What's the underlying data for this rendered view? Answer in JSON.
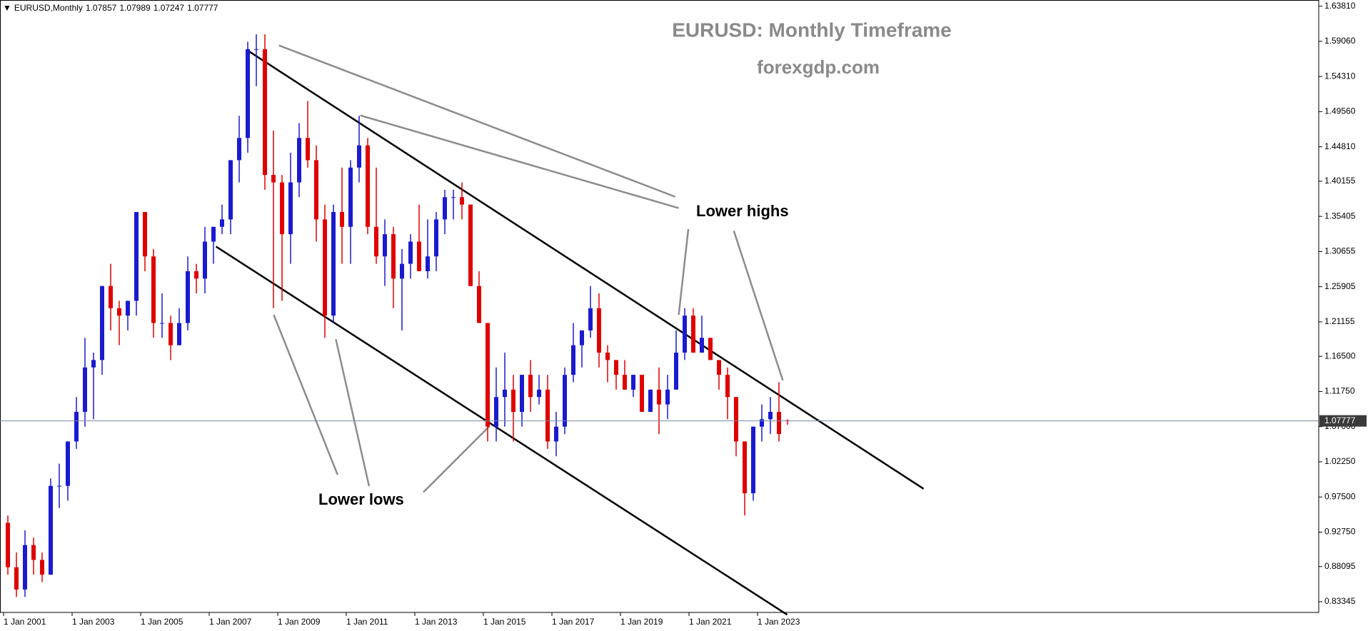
{
  "header": {
    "symbol": "EURUSD,Monthly",
    "ohlc": [
      1.07857,
      1.07989,
      1.07247,
      1.07777
    ]
  },
  "chart_data": {
    "type": "candlestick",
    "title": "EURUSD: Monthly Timeframe",
    "subtitle": "forexgdp.com",
    "annotations": [
      "Lower highs",
      "Lower lows"
    ],
    "up_color": "#1a1ad0",
    "down_color": "#e00000",
    "current_price": 1.07777,
    "x": [
      2001,
      2001.25,
      2001.5,
      2001.75,
      2002,
      2002.25,
      2002.5,
      2002.75,
      2003,
      2003.25,
      2003.5,
      2003.75,
      2004,
      2004.25,
      2004.5,
      2004.75,
      2005,
      2005.25,
      2005.5,
      2005.75,
      2006,
      2006.25,
      2006.5,
      2006.75,
      2007,
      2007.25,
      2007.5,
      2007.75,
      2008,
      2008.25,
      2008.5,
      2008.75,
      2009,
      2009.25,
      2009.5,
      2009.75,
      2010,
      2010.25,
      2010.5,
      2010.75,
      2011,
      2011.25,
      2011.5,
      2011.75,
      2012,
      2012.25,
      2012.5,
      2012.75,
      2013,
      2013.25,
      2013.5,
      2013.75,
      2014,
      2014.25,
      2014.5,
      2014.75,
      2015,
      2015.25,
      2015.5,
      2015.75,
      2016,
      2016.25,
      2016.5,
      2016.75,
      2017,
      2017.25,
      2017.5,
      2017.75,
      2018,
      2018.25,
      2018.5,
      2018.75,
      2019,
      2019.25,
      2019.5,
      2019.75,
      2020,
      2020.25,
      2020.5,
      2020.75,
      2021,
      2021.25,
      2021.5,
      2021.75,
      2022,
      2022.25,
      2022.5,
      2022.75,
      2023,
      2023.25,
      2023.5,
      2023.75
    ],
    "open": [
      0.94,
      0.88,
      0.85,
      0.91,
      0.89,
      0.87,
      0.99,
      0.99,
      1.05,
      1.09,
      1.15,
      1.16,
      1.26,
      1.23,
      1.22,
      1.24,
      1.36,
      1.3,
      1.21,
      1.21,
      1.18,
      1.21,
      1.28,
      1.27,
      1.32,
      1.34,
      1.35,
      1.43,
      1.46,
      1.58,
      1.58,
      1.41,
      1.4,
      1.33,
      1.4,
      1.46,
      1.43,
      1.35,
      1.22,
      1.36,
      1.34,
      1.42,
      1.45,
      1.34,
      1.3,
      1.33,
      1.27,
      1.29,
      1.32,
      1.28,
      1.3,
      1.35,
      1.38,
      1.38,
      1.37,
      1.26,
      1.21,
      1.07,
      1.11,
      1.12,
      1.09,
      1.14,
      1.11,
      1.12,
      1.05,
      1.07,
      1.14,
      1.18,
      1.2,
      1.23,
      1.17,
      1.16,
      1.14,
      1.12,
      1.14,
      1.09,
      1.12,
      1.1,
      1.12,
      1.17,
      1.22,
      1.17,
      1.19,
      1.16,
      1.14,
      1.11,
      1.05,
      0.98,
      1.07,
      1.08,
      1.09,
      1.07857
    ],
    "high": [
      0.95,
      0.9,
      0.93,
      0.92,
      0.9,
      1.0,
      1.02,
      1.05,
      1.11,
      1.19,
      1.17,
      1.26,
      1.29,
      1.24,
      1.24,
      1.36,
      1.36,
      1.31,
      1.25,
      1.22,
      1.23,
      1.3,
      1.29,
      1.34,
      1.34,
      1.37,
      1.43,
      1.49,
      1.59,
      1.6,
      1.6,
      1.47,
      1.41,
      1.44,
      1.48,
      1.51,
      1.45,
      1.37,
      1.37,
      1.42,
      1.43,
      1.49,
      1.46,
      1.42,
      1.35,
      1.34,
      1.31,
      1.33,
      1.37,
      1.35,
      1.36,
      1.39,
      1.39,
      1.4,
      1.37,
      1.28,
      1.21,
      1.15,
      1.17,
      1.14,
      1.14,
      1.16,
      1.14,
      1.14,
      1.09,
      1.15,
      1.21,
      1.2,
      1.26,
      1.25,
      1.18,
      1.16,
      1.16,
      1.14,
      1.14,
      1.12,
      1.15,
      1.14,
      1.2,
      1.23,
      1.23,
      1.22,
      1.19,
      1.16,
      1.15,
      1.11,
      1.05,
      1.07,
      1.1,
      1.11,
      1.13,
      1.07989
    ],
    "low": [
      0.87,
      0.84,
      0.84,
      0.87,
      0.86,
      0.87,
      0.96,
      0.97,
      1.04,
      1.07,
      1.08,
      1.14,
      1.2,
      1.18,
      1.2,
      1.22,
      1.28,
      1.19,
      1.19,
      1.16,
      1.18,
      1.2,
      1.25,
      1.25,
      1.29,
      1.33,
      1.33,
      1.4,
      1.44,
      1.53,
      1.39,
      1.23,
      1.24,
      1.29,
      1.38,
      1.42,
      1.32,
      1.19,
      1.21,
      1.29,
      1.29,
      1.4,
      1.33,
      1.29,
      1.26,
      1.23,
      1.2,
      1.27,
      1.28,
      1.27,
      1.28,
      1.33,
      1.35,
      1.35,
      1.26,
      1.21,
      1.05,
      1.05,
      1.07,
      1.05,
      1.07,
      1.09,
      1.1,
      1.04,
      1.03,
      1.06,
      1.13,
      1.15,
      1.19,
      1.15,
      1.13,
      1.12,
      1.12,
      1.11,
      1.09,
      1.09,
      1.06,
      1.08,
      1.12,
      1.16,
      1.17,
      1.17,
      1.16,
      1.12,
      1.08,
      1.03,
      0.95,
      0.97,
      1.05,
      1.06,
      1.05,
      1.07247
    ],
    "close": [
      0.88,
      0.85,
      0.91,
      0.89,
      0.87,
      0.99,
      0.99,
      1.05,
      1.09,
      1.15,
      1.16,
      1.26,
      1.23,
      1.22,
      1.24,
      1.36,
      1.3,
      1.21,
      1.21,
      1.18,
      1.21,
      1.28,
      1.27,
      1.32,
      1.34,
      1.35,
      1.43,
      1.46,
      1.58,
      1.58,
      1.41,
      1.4,
      1.33,
      1.4,
      1.46,
      1.43,
      1.35,
      1.22,
      1.36,
      1.34,
      1.42,
      1.45,
      1.34,
      1.3,
      1.33,
      1.27,
      1.29,
      1.32,
      1.28,
      1.3,
      1.35,
      1.38,
      1.38,
      1.37,
      1.26,
      1.21,
      1.07,
      1.11,
      1.12,
      1.09,
      1.14,
      1.11,
      1.12,
      1.05,
      1.07,
      1.14,
      1.18,
      1.2,
      1.23,
      1.17,
      1.16,
      1.14,
      1.12,
      1.14,
      1.09,
      1.12,
      1.1,
      1.12,
      1.17,
      1.22,
      1.17,
      1.19,
      1.16,
      1.14,
      1.11,
      1.05,
      0.98,
      1.07,
      1.08,
      1.09,
      1.06,
      1.07777
    ],
    "xlim": [
      2000.896,
      2039.375
    ],
    "ylim": [
      0.819,
      1.6464
    ],
    "xticks": [
      {
        "value": 2001,
        "label": "1 Jan 2001"
      },
      {
        "value": 2003,
        "label": "1 Jan 2003"
      },
      {
        "value": 2005,
        "label": "1 Jan 2005"
      },
      {
        "value": 2007,
        "label": "1 Jan 2007"
      },
      {
        "value": 2009,
        "label": "1 Jan 2009"
      },
      {
        "value": 2011,
        "label": "1 Jan 2011"
      },
      {
        "value": 2013,
        "label": "1 Jan 2013"
      },
      {
        "value": 2015,
        "label": "1 Jan 2015"
      },
      {
        "value": 2017,
        "label": "1 Jan 2017"
      },
      {
        "value": 2019,
        "label": "1 Jan 2019"
      },
      {
        "value": 2021,
        "label": "1 Jan 2021"
      },
      {
        "value": 2023,
        "label": "1 Jan 2023"
      }
    ],
    "yticks": [
      {
        "value": 0.83345,
        "label": "0.83345"
      },
      {
        "value": 0.88095,
        "label": "0.88095"
      },
      {
        "value": 0.9275,
        "label": "0.92750"
      },
      {
        "value": 0.975,
        "label": "0.97500"
      },
      {
        "value": 1.0225,
        "label": "1.02250"
      },
      {
        "value": 1.07,
        "label": "1.07000"
      },
      {
        "value": 1.1175,
        "label": "1.11750"
      },
      {
        "value": 1.165,
        "label": "1.16500"
      },
      {
        "value": 1.21155,
        "label": "1.21155"
      },
      {
        "value": 1.25905,
        "label": "1.25905"
      },
      {
        "value": 1.30655,
        "label": "1.30655"
      },
      {
        "value": 1.35405,
        "label": "1.35405"
      },
      {
        "value": 1.40155,
        "label": "1.40155"
      },
      {
        "value": 1.4481,
        "label": "1.44810"
      },
      {
        "value": 1.4956,
        "label": "1.49560"
      },
      {
        "value": 1.5431,
        "label": "1.54310"
      },
      {
        "value": 1.5906,
        "label": "1.59060"
      },
      {
        "value": 1.6381,
        "label": "1.63810"
      }
    ]
  }
}
